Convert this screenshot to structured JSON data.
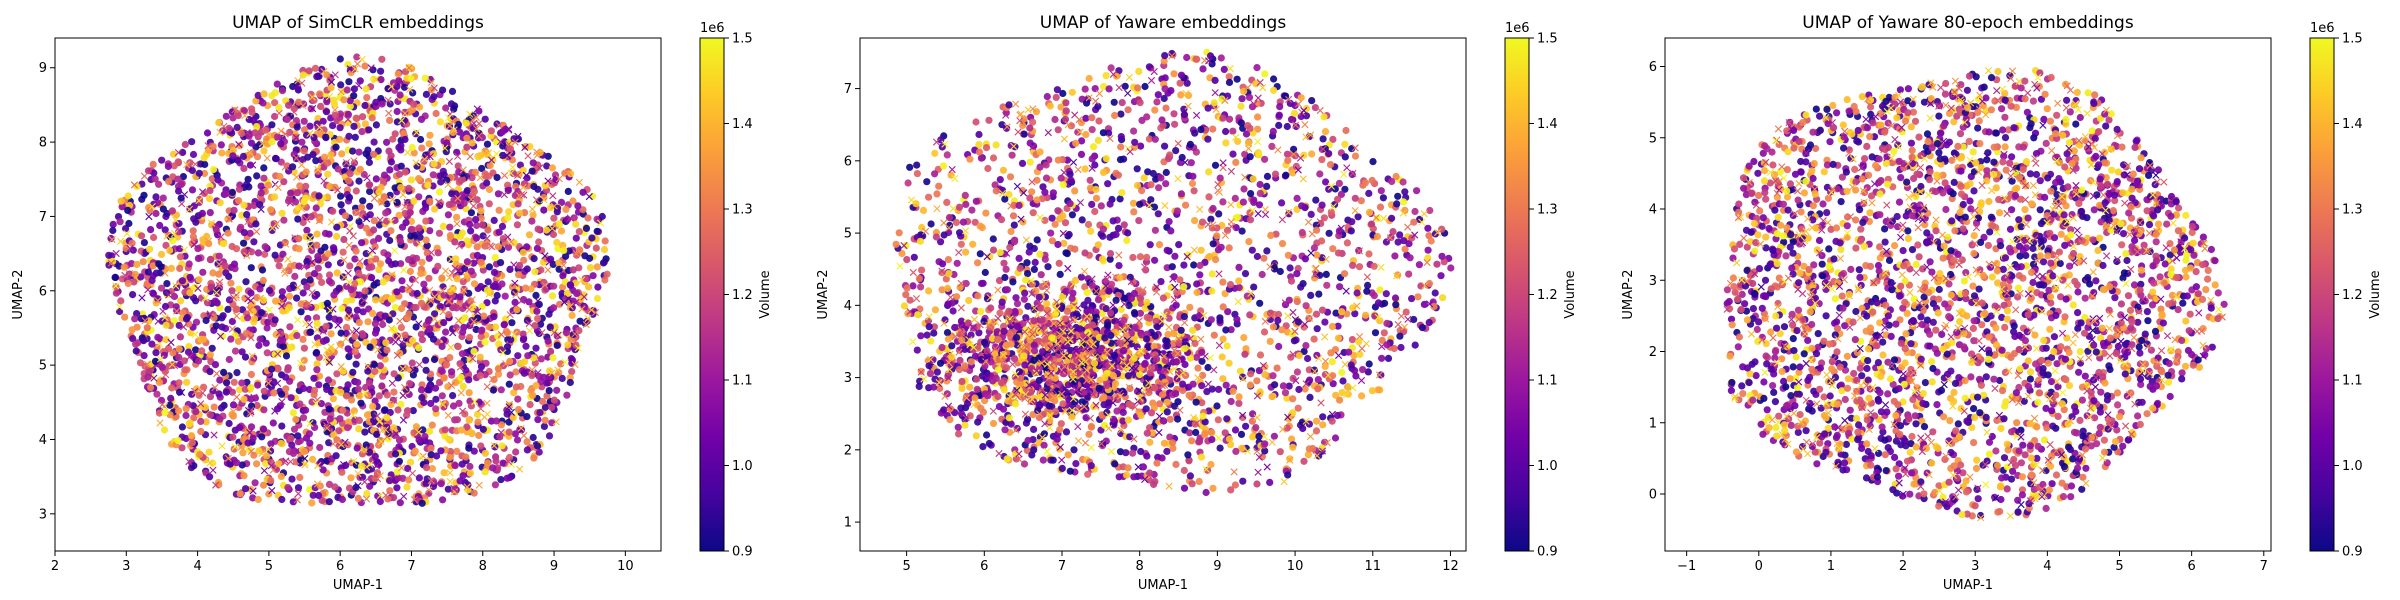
{
  "colormap": {
    "name": "plasma",
    "stops": [
      "#0d0887",
      "#46039f",
      "#7201a8",
      "#9c179e",
      "#bd3786",
      "#d8576b",
      "#ed7953",
      "#fb9f3a",
      "#fdca26",
      "#f0f921"
    ]
  },
  "chart_data": [
    {
      "type": "scatter",
      "title": "UMAP of SimCLR embeddings",
      "xlabel": "UMAP-1",
      "ylabel": "UMAP-2",
      "xlim": [
        2.0,
        10.5
      ],
      "ylim": [
        2.5,
        9.4
      ],
      "xticks": [
        2,
        3,
        4,
        5,
        6,
        7,
        8,
        9,
        10
      ],
      "yticks": [
        3,
        4,
        5,
        6,
        7,
        8,
        9
      ],
      "colorbar": {
        "label": "Volume",
        "multiplier": "1e6",
        "range": [
          0.9,
          1.5
        ],
        "ticks": [
          0.9,
          1.0,
          1.1,
          1.2,
          1.3,
          1.4,
          1.5
        ]
      },
      "markers": {
        "circle": "dot",
        "x": "cross"
      },
      "cloud": {
        "center": [
          6.25,
          6.0
        ],
        "radius": [
          3.45,
          3.0
        ],
        "n_circle": 3000,
        "n_cross": 500,
        "density": "uniform-ellipse",
        "seed": 11
      }
    },
    {
      "type": "scatter",
      "title": "UMAP of Yaware embeddings",
      "xlabel": "UMAP-1",
      "ylabel": "UMAP-2",
      "xlim": [
        4.4,
        12.2
      ],
      "ylim": [
        0.6,
        7.7
      ],
      "xticks": [
        5,
        6,
        7,
        8,
        9,
        10,
        11,
        12
      ],
      "yticks": [
        1,
        2,
        3,
        4,
        5,
        6,
        7
      ],
      "colorbar": {
        "label": "Volume",
        "multiplier": "1e6",
        "range": [
          0.9,
          1.5
        ],
        "ticks": [
          0.9,
          1.0,
          1.1,
          1.2,
          1.3,
          1.4,
          1.5
        ]
      },
      "markers": {
        "circle": "dot",
        "x": "cross"
      },
      "cloud": {
        "center": [
          8.3,
          4.4
        ],
        "radius": [
          3.55,
          3.0
        ],
        "n_circle": 2600,
        "n_cross": 500,
        "density": "dense-lower-left",
        "seed": 23
      }
    },
    {
      "type": "scatter",
      "title": "UMAP of Yaware 80-epoch embeddings",
      "xlabel": "UMAP-1",
      "ylabel": "UMAP-2",
      "xlim": [
        -1.3,
        7.1
      ],
      "ylim": [
        -0.8,
        6.4
      ],
      "xticks": [
        -1,
        0,
        1,
        2,
        3,
        4,
        5,
        6,
        7
      ],
      "yticks": [
        0,
        1,
        2,
        3,
        4,
        5,
        6
      ],
      "colorbar": {
        "label": "Volume",
        "multiplier": "1e6",
        "range": [
          0.9,
          1.5
        ],
        "ticks": [
          0.9,
          1.0,
          1.1,
          1.2,
          1.3,
          1.4,
          1.5
        ]
      },
      "markers": {
        "circle": "dot",
        "x": "cross"
      },
      "cloud": {
        "center": [
          2.85,
          2.85
        ],
        "radius": [
          3.45,
          3.1
        ],
        "n_circle": 2600,
        "n_cross": 500,
        "density": "uniform-ellipse",
        "seed": 37
      }
    }
  ]
}
